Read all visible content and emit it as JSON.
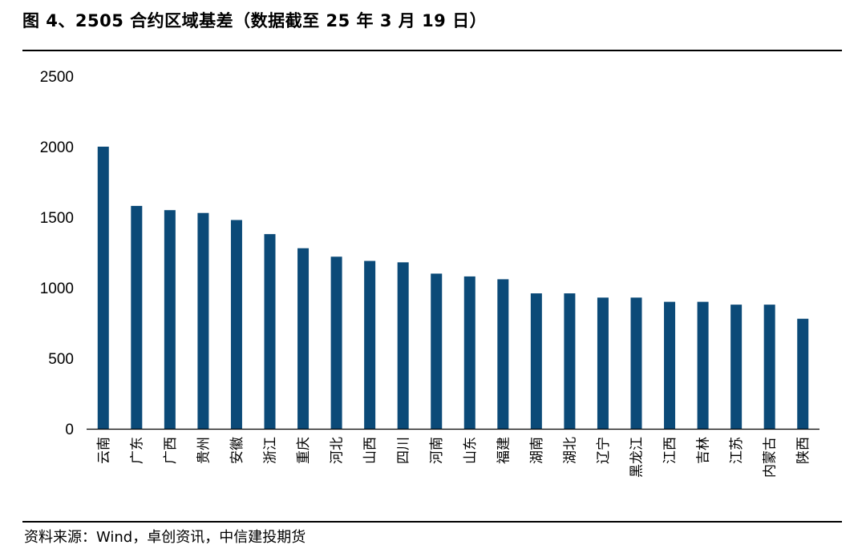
{
  "header": {
    "title": "图 4、2505 合约区域基差（数据截至 25 年 3 月 19 日）"
  },
  "footer": {
    "source": "资料来源：Wind，卓创资讯，中信建投期货"
  },
  "colors": {
    "bar": "#0b4a78",
    "axis": "#000000",
    "rule": "#000000"
  },
  "chart_data": {
    "type": "bar",
    "title": "",
    "xlabel": "",
    "ylabel": "",
    "ylim": [
      0,
      2500
    ],
    "yticks": [
      0,
      500,
      1000,
      1500,
      2000,
      2500
    ],
    "grid": false,
    "legend": "none",
    "categories": [
      "云南",
      "广东",
      "广西",
      "贵州",
      "安徽",
      "浙江",
      "重庆",
      "河北",
      "山西",
      "四川",
      "河南",
      "山东",
      "福建",
      "湖南",
      "湖北",
      "辽宁",
      "黑龙江",
      "江西",
      "吉林",
      "江苏",
      "内蒙古",
      "陕西"
    ],
    "values": [
      2000,
      1580,
      1550,
      1530,
      1480,
      1380,
      1280,
      1220,
      1190,
      1180,
      1100,
      1080,
      1060,
      960,
      960,
      930,
      930,
      900,
      900,
      880,
      880,
      780
    ]
  }
}
